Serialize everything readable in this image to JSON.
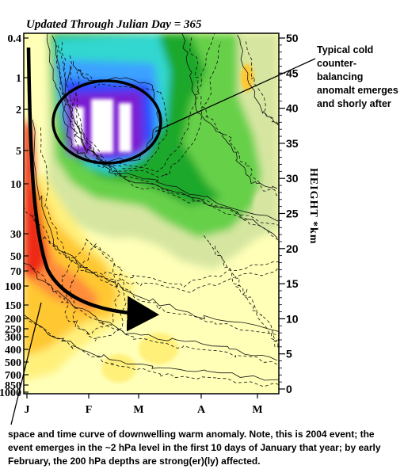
{
  "chart_data": {
    "type": "heatmap",
    "title": "Updated Through Julian Day = 365",
    "ylabel_right": "HEIGHT *km",
    "y_left_ticks": [
      "0.4",
      "1",
      "2",
      "5",
      "10",
      "30",
      "50",
      "70",
      "100",
      "150",
      "200",
      "250",
      "300",
      "400",
      "500",
      "700",
      "850",
      "1000"
    ],
    "y_right_ticks": [
      "50",
      "45",
      "40",
      "35",
      "30",
      "25",
      "20",
      "15",
      "10",
      "5",
      "0"
    ],
    "x_ticks": [
      "J",
      "F",
      "M",
      "A",
      "M"
    ],
    "color_bands": [
      "#ff8c3a",
      "#ffc830",
      "#fff07a",
      "#ffffb8",
      "#d6e6a0",
      "#66d04a",
      "#1ea82a",
      "#30d7cf",
      "#3aa3ff",
      "#2a47ff",
      "#7a1fd1",
      "#ffffff"
    ]
  },
  "annotations": {
    "callout": "Typical cold counter-balancing anomalt emerges and shorly after",
    "caption": "space and time curve of downwelling warm anomaly.  Note, this is 2004 event; the event emerges in the ~2 hPa level in the first 10 days of January that year; by early February, the 200 hPa depths are strong(er)(ly) affected."
  }
}
